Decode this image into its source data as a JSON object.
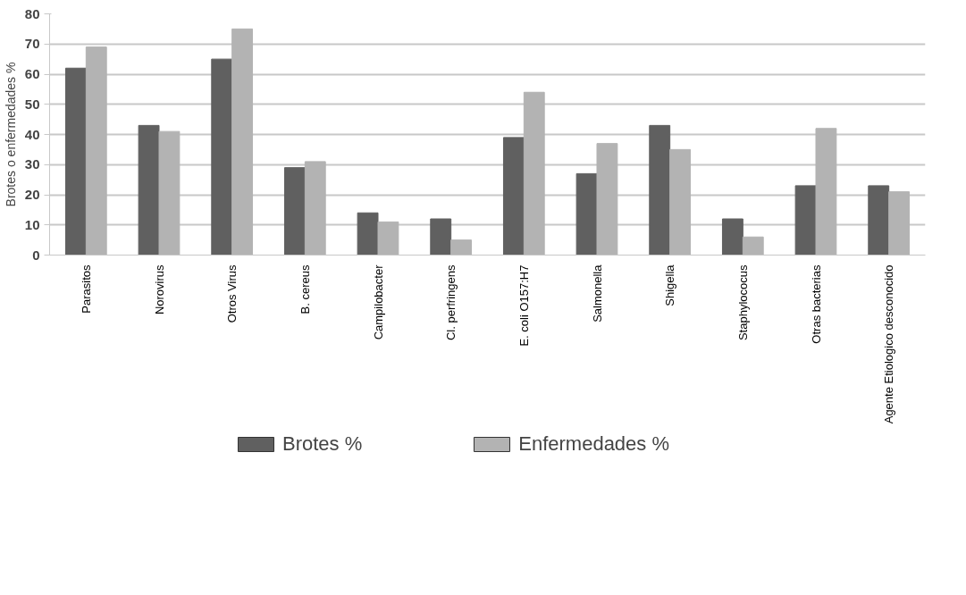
{
  "chart_data": {
    "type": "bar",
    "ylabel": "Brotes o enfermedades %",
    "categories": [
      "Parasitos",
      "Norovirus",
      "Otros Virus",
      "B. cereus",
      "Campilobacter",
      "Cl. perfringens",
      "E. coli O157:H7",
      "Salmonella",
      "Shigella",
      "Staphylococus",
      "Otras bacterias",
      "Agente Etiologico desconocido"
    ],
    "series": [
      {
        "name": "Brotes %",
        "color": "#606060",
        "values": [
          62,
          43,
          65,
          29,
          14,
          12,
          39,
          27,
          43,
          12,
          23,
          23
        ]
      },
      {
        "name": "Enfermedades %",
        "color": "#b3b3b3",
        "values": [
          69,
          41,
          75,
          31,
          11,
          5,
          54,
          37,
          35,
          6,
          42,
          21
        ]
      }
    ],
    "ylim": [
      0,
      80
    ],
    "yticks": [
      0,
      10,
      20,
      30,
      40,
      50,
      60,
      70,
      80
    ],
    "grid": "y",
    "legend": "bottom"
  }
}
